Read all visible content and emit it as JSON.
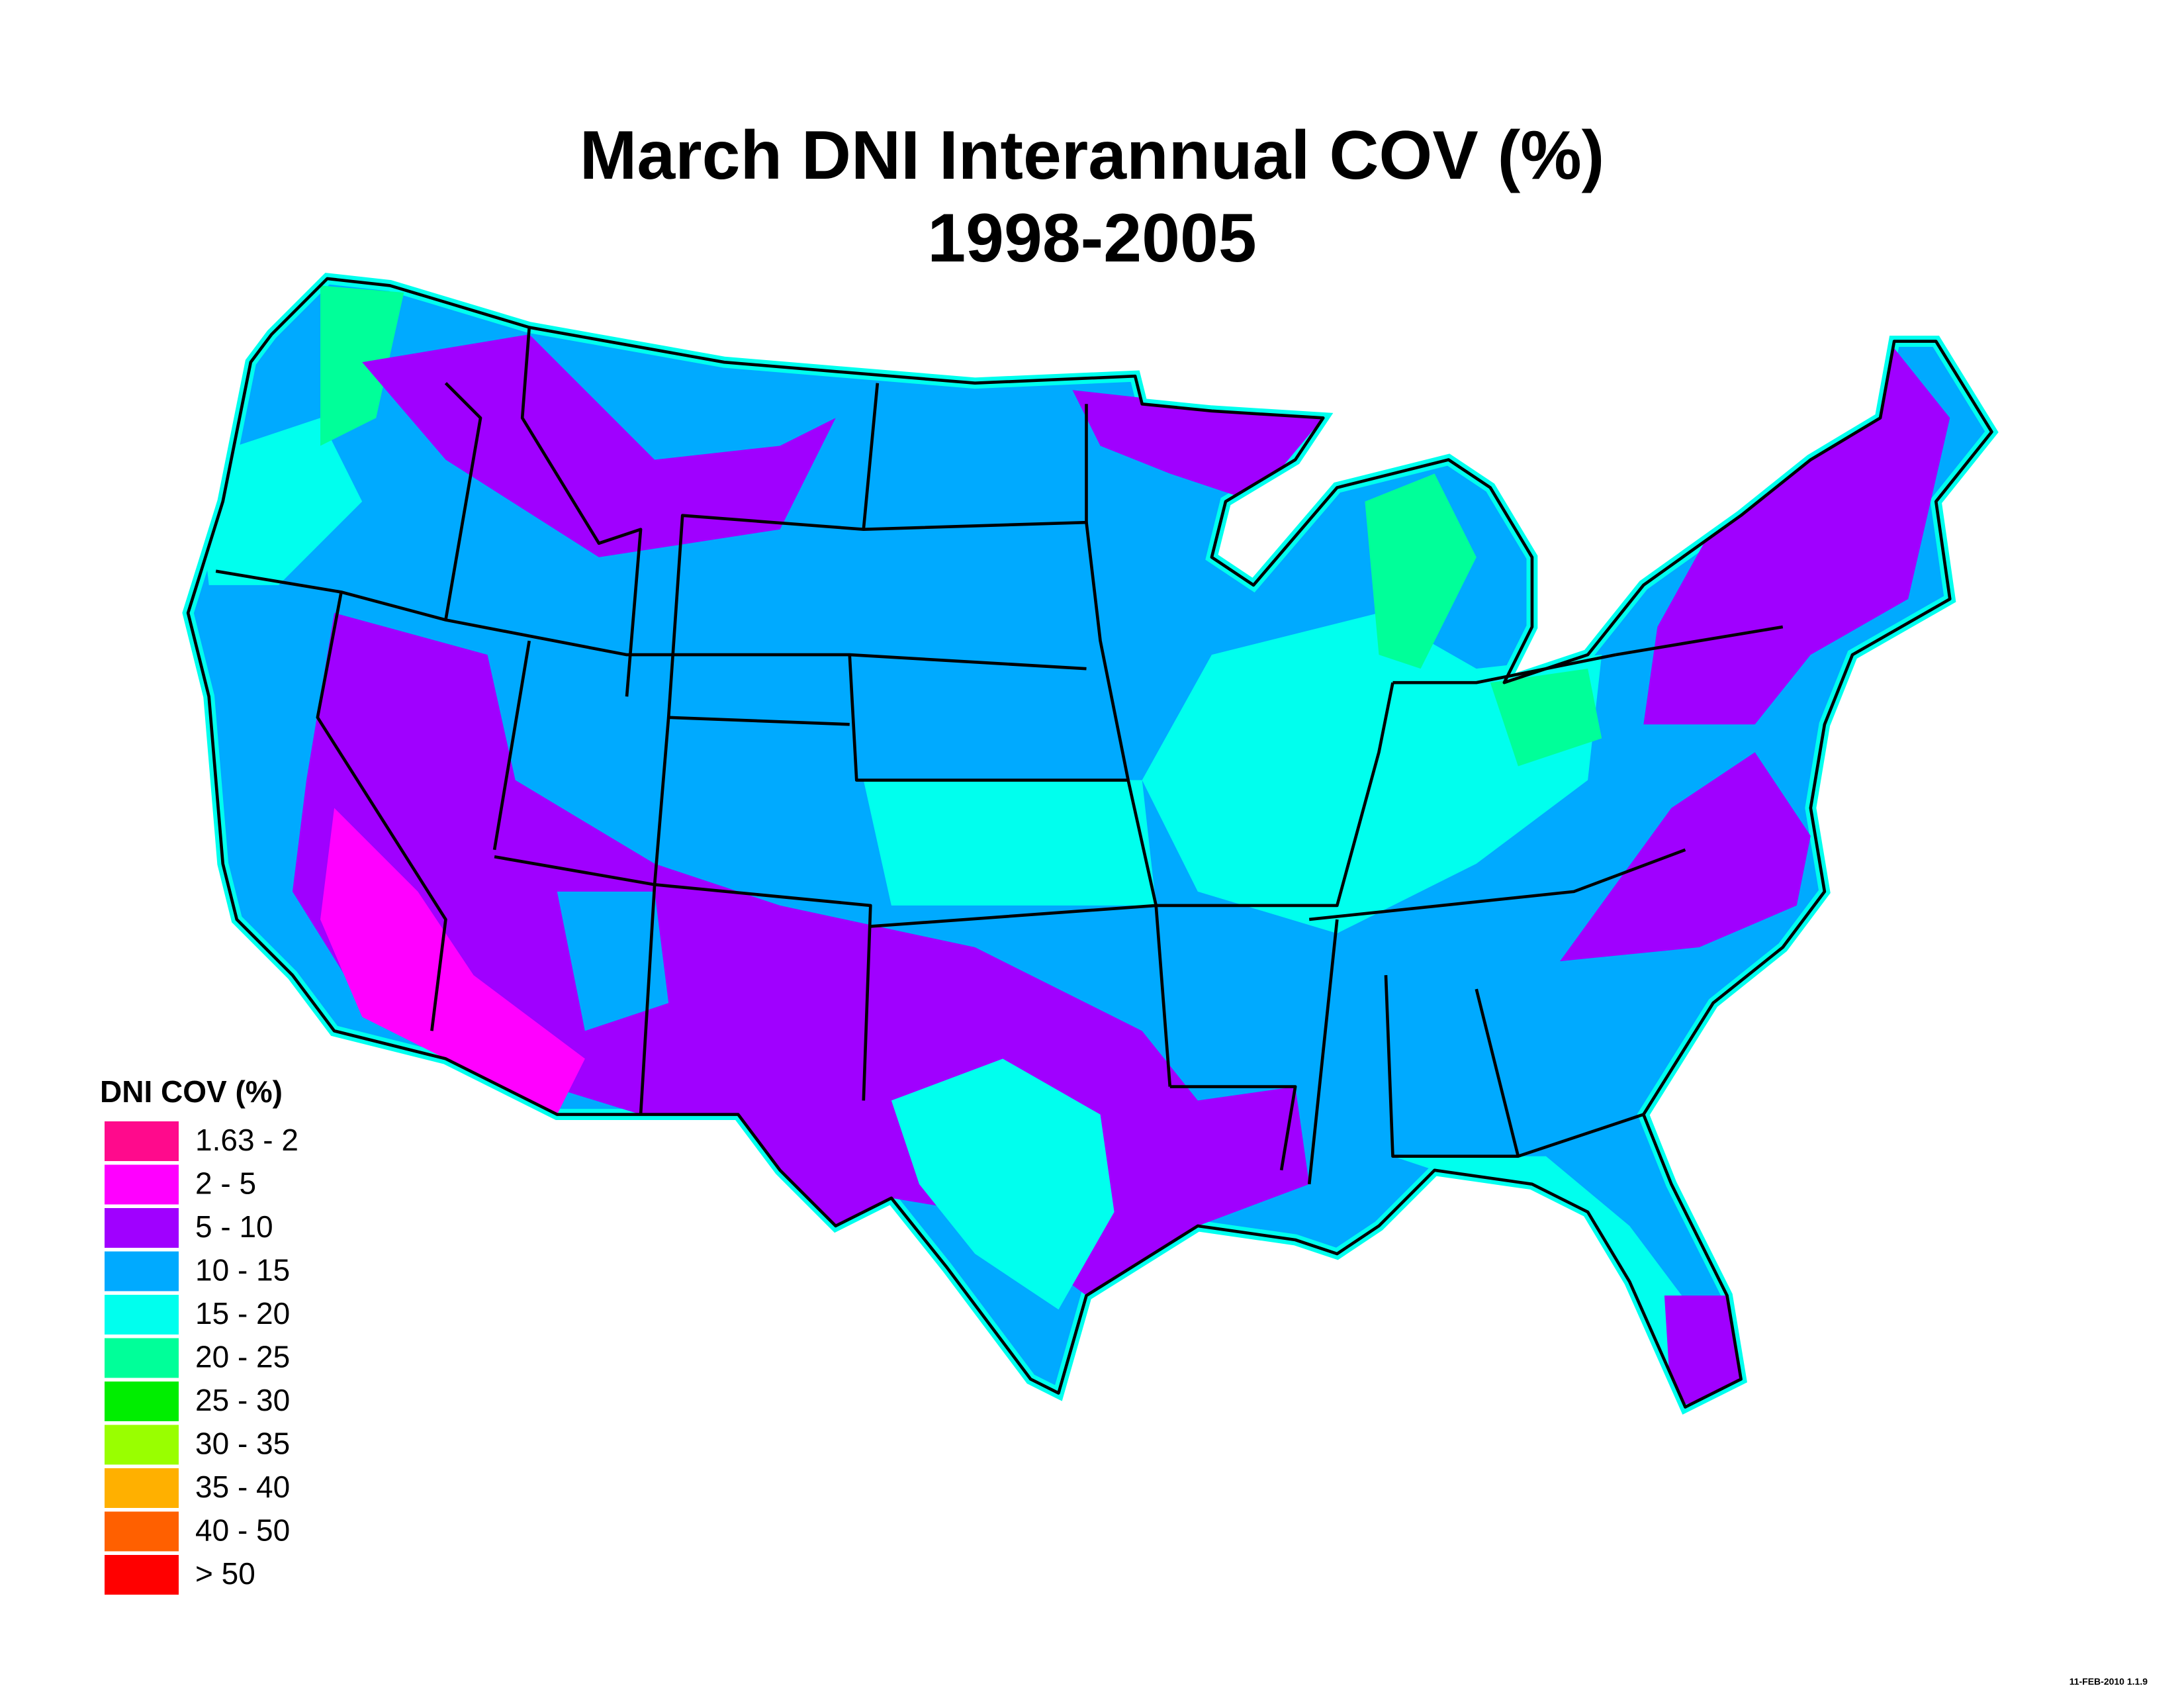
{
  "title": "March DNI Interannual COV (%)",
  "subtitle": "1998-2005",
  "legend": {
    "title": "DNI COV (%)",
    "items": [
      {
        "label": "1.63 - 2",
        "color": "#ff0a8c"
      },
      {
        "label": "2 - 5",
        "color": "#ff00ff"
      },
      {
        "label": "5 - 10",
        "color": "#a000ff"
      },
      {
        "label": "10 - 15",
        "color": "#00aaff"
      },
      {
        "label": "15 - 20",
        "color": "#00ffee"
      },
      {
        "label": "20 - 25",
        "color": "#00ff99"
      },
      {
        "label": "25 - 30",
        "color": "#00ee00"
      },
      {
        "label": "30 - 35",
        "color": "#99ff00"
      },
      {
        "label": "35 - 40",
        "color": "#ffb000"
      },
      {
        "label": "40 - 50",
        "color": "#ff6000"
      },
      {
        "label": "> 50",
        "color": "#ff0000"
      }
    ]
  },
  "footer": "11-FEB-2010 1.1.9"
}
